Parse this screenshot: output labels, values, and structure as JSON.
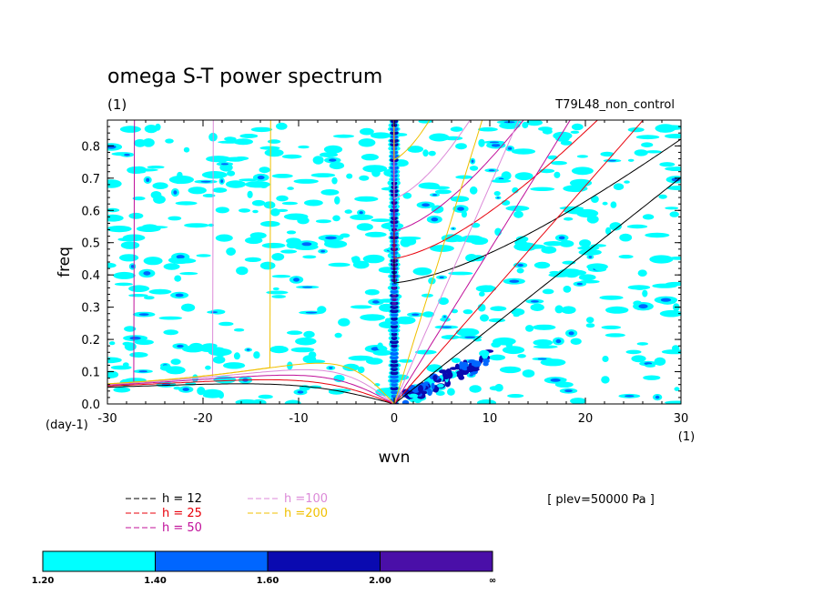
{
  "chart_data": {
    "type": "heatmap",
    "title": "omega S-T power spectrum",
    "subtitle_left": "(1)",
    "subtitle_right": "T79L48_non_control",
    "xlabel": "wvn",
    "ylabel": "freq",
    "x_unit_label": "(1)",
    "y_unit_label": "(day-1)",
    "xlim": [
      -30,
      30
    ],
    "ylim": [
      0,
      0.88
    ],
    "x_ticks": [
      -30,
      -20,
      -10,
      0,
      10,
      20,
      30
    ],
    "x_tick_labels": [
      "-30",
      "-20",
      "-10",
      "0",
      "10",
      "20",
      "30"
    ],
    "y_ticks": [
      0.0,
      0.1,
      0.2,
      0.3,
      0.4,
      0.5,
      0.6,
      0.7,
      0.8
    ],
    "y_tick_labels": [
      "0.0",
      "0.1",
      "0.2",
      "0.3",
      "0.4",
      "0.5",
      "0.6",
      "0.7",
      "0.8"
    ],
    "annotation": "[ plev=50000 Pa ]",
    "dispersion_curves": [
      {
        "label": "h = 12",
        "equivalent_depth": 12,
        "color": "#000000"
      },
      {
        "label": "h = 25",
        "equivalent_depth": 25,
        "color": "#e8000b"
      },
      {
        "label": "h = 50",
        "equivalent_depth": 50,
        "color": "#c0109a"
      },
      {
        "label": "h =100",
        "equivalent_depth": 100,
        "color": "#dc8ad8"
      },
      {
        "label": "h =200",
        "equivalent_depth": 200,
        "color": "#f0c000"
      }
    ],
    "color_levels": [
      {
        "from": "1.20",
        "to": "1.40",
        "color": "#00ffff"
      },
      {
        "from": "1.40",
        "to": "1.60",
        "color": "#0066ff"
      },
      {
        "from": "1.60",
        "to": "2.00",
        "color": "#0a0ab0"
      },
      {
        "from": "2.00",
        "to": "∞",
        "color": "#4a0fa8"
      }
    ]
  }
}
